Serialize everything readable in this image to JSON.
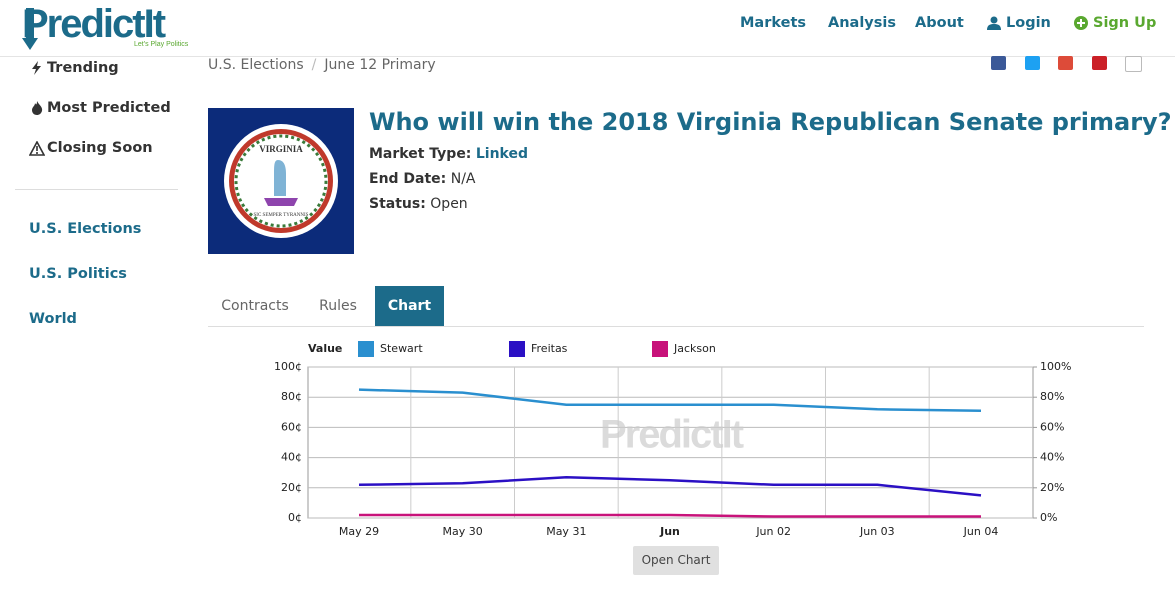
{
  "header": {
    "logo": "PredictIt",
    "tagline": "Let's Play Politics",
    "nav": [
      "Markets",
      "Analysis",
      "About",
      "Login",
      "Sign Up"
    ]
  },
  "sidebar": {
    "links": [
      "Trending",
      "Most Predicted",
      "Closing Soon"
    ],
    "categories": [
      "U.S. Elections",
      "U.S. Politics",
      "World"
    ]
  },
  "breadcrumb": [
    "U.S. Elections",
    "June 12 Primary"
  ],
  "market": {
    "title": "Who will win the 2018 Virginia Republican Senate primary?",
    "seal": {
      "top": "VIRGINIA",
      "bottom": "SIC SEMPER TYRANNIS"
    },
    "fields": [
      {
        "label": "Market Type:",
        "value": "Linked"
      },
      {
        "label": "End Date:",
        "value": "N/A"
      },
      {
        "label": "Status:",
        "value": "Open"
      }
    ]
  },
  "tabs": [
    "Contracts",
    "Rules",
    "Chart"
  ],
  "chart_data": {
    "type": "line",
    "legend_title": "Value",
    "watermark": "PredictIt",
    "categories": [
      "May 29",
      "May 30",
      "May 31",
      "Jun",
      "Jun 02",
      "Jun 03",
      "Jun 04"
    ],
    "series": [
      {
        "name": "Stewart",
        "color": "#2a8fcf",
        "values": [
          85,
          83,
          75,
          75,
          75,
          72,
          71
        ]
      },
      {
        "name": "Freitas",
        "color": "#2b10c4",
        "values": [
          22,
          23,
          27,
          25,
          22,
          22,
          15
        ]
      },
      {
        "name": "Jackson",
        "color": "#c8127a",
        "values": [
          2,
          2,
          2,
          2,
          1,
          1,
          1
        ]
      }
    ],
    "ylim": [
      0,
      100
    ],
    "yticks": [
      {
        "value": 0,
        "label": "0¢"
      },
      {
        "value": 20,
        "label": "20¢"
      },
      {
        "value": 40,
        "label": "40¢"
      },
      {
        "value": 60,
        "label": "60¢"
      },
      {
        "value": 80,
        "label": "80¢"
      },
      {
        "value": 100,
        "label": "100¢"
      }
    ],
    "y2lim": [
      0,
      100
    ],
    "y2ticks": [
      {
        "value": 0,
        "label": "0%"
      },
      {
        "value": 20,
        "label": "20%"
      },
      {
        "value": 40,
        "label": "40%"
      },
      {
        "value": 60,
        "label": "60%"
      },
      {
        "value": 80,
        "label": "80%"
      },
      {
        "value": 100,
        "label": "100%"
      }
    ],
    "grid": true
  },
  "button": "Open Chart"
}
